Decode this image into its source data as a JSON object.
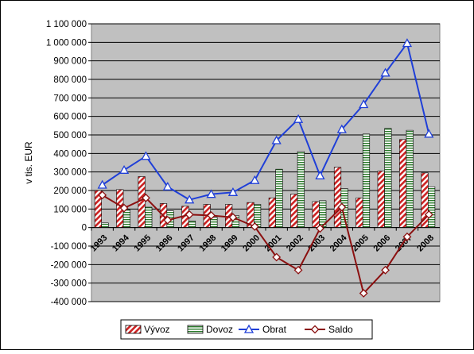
{
  "chart_data": {
    "type": "bar",
    "title": "",
    "xlabel": "",
    "ylabel": "v tis. EUR",
    "ylim": [
      -400000,
      1100000
    ],
    "ytick_step": 100000,
    "grid": true,
    "legend_position": "bottom",
    "categories": [
      "1993",
      "1994",
      "1995",
      "1996",
      "1997",
      "1998",
      "1999",
      "2000",
      "2001",
      "2002",
      "2003",
      "2004",
      "2005",
      "2006",
      "2007",
      "2008"
    ],
    "series": [
      {
        "name": "Vývoz",
        "kind": "bar",
        "color": "#cc2222",
        "pattern": "diagonal-hatch",
        "values": [
          200000,
          205000,
          275000,
          130000,
          115000,
          125000,
          125000,
          135000,
          160000,
          180000,
          140000,
          325000,
          160000,
          305000,
          475000,
          295000
        ]
      },
      {
        "name": "Dovoz",
        "kind": "bar",
        "color": "#2a7a2a",
        "pattern": "horizontal-lines",
        "values": [
          25000,
          95000,
          110000,
          90000,
          35000,
          55000,
          65000,
          125000,
          315000,
          410000,
          145000,
          210000,
          505000,
          535000,
          525000,
          220000
        ]
      },
      {
        "name": "Obrat",
        "kind": "line",
        "color": "#1f3fd8",
        "marker": "triangle",
        "values": [
          230000,
          310000,
          385000,
          220000,
          150000,
          180000,
          190000,
          255000,
          470000,
          585000,
          280000,
          530000,
          665000,
          835000,
          995000,
          505000
        ]
      },
      {
        "name": "Saldo",
        "kind": "line",
        "color": "#8b1010",
        "marker": "diamond",
        "values": [
          175000,
          105000,
          160000,
          40000,
          70000,
          65000,
          55000,
          5000,
          -160000,
          -230000,
          -5000,
          110000,
          -355000,
          -230000,
          -50000,
          70000
        ]
      }
    ]
  }
}
